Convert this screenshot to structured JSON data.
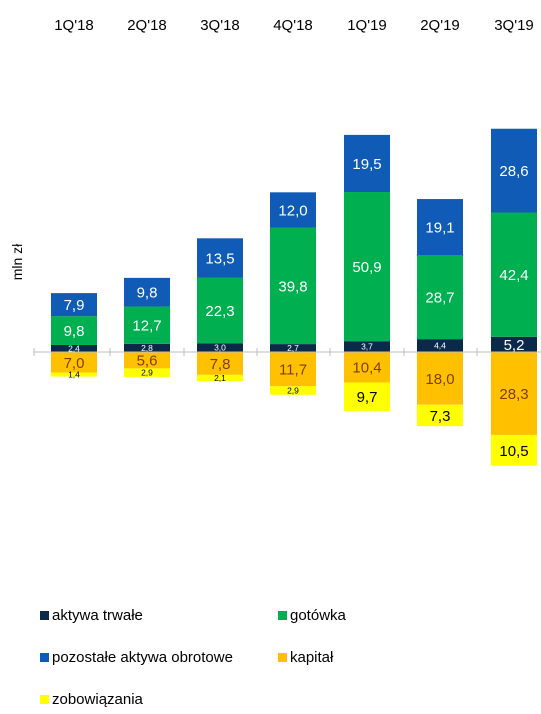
{
  "chart_data": {
    "type": "bar",
    "stacked": true,
    "categories": [
      "1Q'18",
      "2Q'18",
      "3Q'18",
      "4Q'18",
      "1Q'19",
      "2Q'19",
      "3Q'19"
    ],
    "ylabel": "mln zł",
    "series": [
      {
        "name": "aktywa trwałe",
        "side": "positive",
        "color": "#0b2a4a",
        "label_color": "#ffffff",
        "values": [
          2.4,
          2.8,
          3.0,
          2.7,
          3.7,
          4.4,
          5.2
        ],
        "labels": [
          "2,4",
          "2,8",
          "3,0",
          "2,7",
          "3,7",
          "4,4",
          "5,2"
        ]
      },
      {
        "name": "gotówka",
        "side": "positive",
        "color": "#00b050",
        "label_color": "#ffffff",
        "values": [
          9.8,
          12.7,
          22.3,
          39.8,
          50.9,
          28.7,
          42.4
        ],
        "labels": [
          "9,8",
          "12,7",
          "22,3",
          "39,8",
          "50,9",
          "28,7",
          "42,4"
        ]
      },
      {
        "name": "pozostałe aktywa obrotowe",
        "side": "positive",
        "color": "#0f5bb5",
        "label_color": "#ffffff",
        "values": [
          7.9,
          9.8,
          13.5,
          12.0,
          19.5,
          19.1,
          28.6
        ],
        "labels": [
          "7,9",
          "9,8",
          "13,5",
          "12,0",
          "19,5",
          "19,1",
          "28,6"
        ]
      },
      {
        "name": "kapitał",
        "side": "negative",
        "color": "#ffc000",
        "label_color": "#7f3f00",
        "values": [
          7.0,
          5.6,
          7.8,
          11.7,
          10.4,
          18.0,
          28.3
        ],
        "labels": [
          "7,0",
          "5,6",
          "7,8",
          "11,7",
          "10,4",
          "18,0",
          "28,3"
        ]
      },
      {
        "name": "zobowiązania",
        "side": "negative",
        "color": "#ffff00",
        "label_color": "#000000",
        "values": [
          1.4,
          2.9,
          2.1,
          2.9,
          9.7,
          7.3,
          10.5
        ],
        "labels": [
          "1,4",
          "2,9",
          "2,1",
          "2,9",
          "9,7",
          "7,3",
          "10,5"
        ]
      }
    ],
    "legend": [
      {
        "name": "aktywa trwałe",
        "color": "#0b2a4a"
      },
      {
        "name": "gotówka",
        "color": "#00b050"
      },
      {
        "name": "pozostałe aktywa obrotowe",
        "color": "#0f5bb5"
      },
      {
        "name": "kapitał",
        "color": "#ffc000"
      },
      {
        "name": "zobowiązania",
        "color": "#ffff00"
      }
    ],
    "legend_position": "bottom",
    "category_labels_position": "top",
    "grid": false
  }
}
